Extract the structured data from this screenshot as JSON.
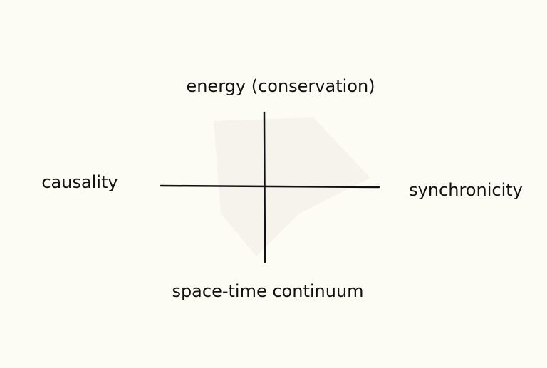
{
  "labels": {
    "top": "energy (conservation)",
    "bottom": "space-time continuum",
    "left": "causality",
    "right": "synchronicity"
  }
}
